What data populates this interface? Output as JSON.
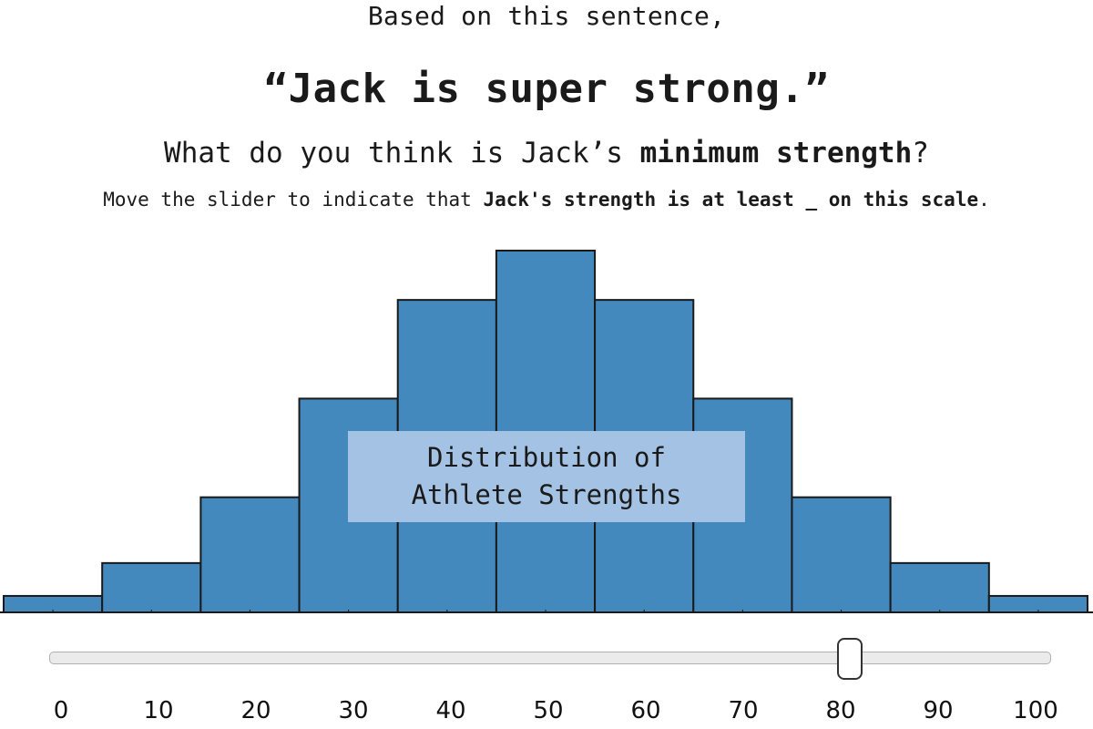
{
  "prompt": {
    "intro": "Based on this sentence,",
    "sentence": "“Jack is super strong.”",
    "question_prefix": "What do you think is Jack’s ",
    "question_bold": "minimum strength",
    "question_suffix": "?",
    "instruction_prefix": "Move the slider to indicate that ",
    "instruction_bold": "Jack's strength is at least _ on this scale",
    "instruction_suffix": "."
  },
  "chart_data": {
    "type": "bar",
    "title": "Distribution of\nAthlete Strengths",
    "categories": [
      "0",
      "10",
      "20",
      "30",
      "40",
      "50",
      "60",
      "70",
      "80",
      "90",
      "100"
    ],
    "values": [
      1,
      3,
      7,
      13,
      19,
      22,
      19,
      13,
      7,
      3,
      1
    ],
    "ylim": [
      0,
      22
    ],
    "bar_color": "#4389be",
    "edge_color": "#1a1a1a",
    "label_box_color": "#a3c2e4"
  },
  "slider": {
    "min": 0,
    "max": 100,
    "value": 80,
    "tick_labels": [
      "0",
      "10",
      "20",
      "30",
      "40",
      "50",
      "60",
      "70",
      "80",
      "90",
      "100"
    ]
  }
}
